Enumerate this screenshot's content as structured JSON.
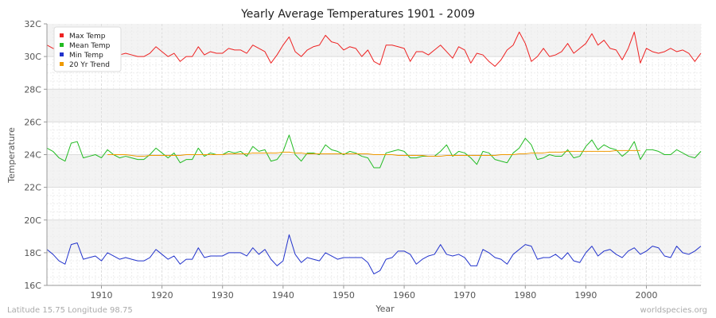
{
  "chart_data": {
    "type": "line",
    "title": "Yearly Average Temperatures 1901 - 2009",
    "xlabel": "Year",
    "ylabel": "Temperature",
    "xlim": [
      1901,
      2009
    ],
    "ylim": [
      16,
      32
    ],
    "x_ticks": [
      1910,
      1920,
      1930,
      1940,
      1950,
      1960,
      1970,
      1980,
      1990,
      2000
    ],
    "y_ticks": [
      16,
      18,
      20,
      22,
      24,
      26,
      28,
      30,
      32
    ],
    "y_tick_labels": [
      "16C",
      "18C",
      "20C",
      "22C",
      "24C",
      "26C",
      "28C",
      "30C",
      "32C"
    ],
    "grid": true,
    "legend_position": "top-left",
    "x": [
      1901,
      1902,
      1903,
      1904,
      1905,
      1906,
      1907,
      1908,
      1909,
      1910,
      1911,
      1912,
      1913,
      1914,
      1915,
      1916,
      1917,
      1918,
      1919,
      1920,
      1921,
      1922,
      1923,
      1924,
      1925,
      1926,
      1927,
      1928,
      1929,
      1930,
      1931,
      1932,
      1933,
      1934,
      1935,
      1936,
      1937,
      1938,
      1939,
      1940,
      1941,
      1942,
      1943,
      1944,
      1945,
      1946,
      1947,
      1948,
      1949,
      1950,
      1951,
      1952,
      1953,
      1954,
      1955,
      1956,
      1957,
      1958,
      1959,
      1960,
      1961,
      1962,
      1963,
      1964,
      1965,
      1966,
      1967,
      1968,
      1969,
      1970,
      1971,
      1972,
      1973,
      1974,
      1975,
      1976,
      1977,
      1978,
      1979,
      1980,
      1981,
      1982,
      1983,
      1984,
      1985,
      1986,
      1987,
      1988,
      1989,
      1990,
      1991,
      1992,
      1993,
      1994,
      1995,
      1996,
      1997,
      1998,
      1999,
      2000,
      2001,
      2002,
      2003,
      2004,
      2005,
      2006,
      2007,
      2008,
      2009
    ],
    "series": [
      {
        "name": "Max Temp",
        "color": "#ee2222",
        "values": [
          30.7,
          30.5,
          30.4,
          30.5,
          30.4,
          30.3,
          30.2,
          30.3,
          30.1,
          30.2,
          30.1,
          29.9,
          30.1,
          30.2,
          30.1,
          30.0,
          30.0,
          30.2,
          30.6,
          30.3,
          30.0,
          30.2,
          29.7,
          30.0,
          30.0,
          30.6,
          30.1,
          30.3,
          30.2,
          30.2,
          30.5,
          30.4,
          30.4,
          30.2,
          30.7,
          30.5,
          30.3,
          29.6,
          30.1,
          30.7,
          31.2,
          30.3,
          30.0,
          30.4,
          30.6,
          30.7,
          31.3,
          30.9,
          30.8,
          30.4,
          30.6,
          30.5,
          30.0,
          30.4,
          29.7,
          29.5,
          30.7,
          30.7,
          30.6,
          30.5,
          29.7,
          30.3,
          30.3,
          30.1,
          30.4,
          30.7,
          30.3,
          29.9,
          30.6,
          30.4,
          29.6,
          30.2,
          30.1,
          29.7,
          29.4,
          29.8,
          30.4,
          30.7,
          31.5,
          30.8,
          29.7,
          30.0,
          30.5,
          30.0,
          30.1,
          30.3,
          30.8,
          30.2,
          30.5,
          30.8,
          31.4,
          30.7,
          31.0,
          30.5,
          30.4,
          29.8,
          30.5,
          31.5,
          29.6,
          30.5,
          30.3,
          30.2,
          30.3,
          30.5,
          30.3,
          30.4,
          30.2,
          29.7,
          30.2
        ]
      },
      {
        "name": "Mean Temp",
        "color": "#22bb22",
        "values": [
          24.4,
          24.2,
          23.8,
          23.6,
          24.7,
          24.8,
          23.8,
          23.9,
          24.0,
          23.8,
          24.3,
          24.0,
          23.8,
          23.9,
          23.8,
          23.7,
          23.7,
          24.0,
          24.4,
          24.1,
          23.8,
          24.1,
          23.5,
          23.7,
          23.7,
          24.4,
          23.9,
          24.1,
          24.0,
          24.0,
          24.2,
          24.1,
          24.2,
          23.9,
          24.5,
          24.2,
          24.3,
          23.6,
          23.7,
          24.2,
          25.2,
          24.0,
          23.6,
          24.1,
          24.1,
          24.0,
          24.6,
          24.3,
          24.2,
          24.0,
          24.2,
          24.1,
          23.9,
          23.8,
          23.2,
          23.2,
          24.1,
          24.2,
          24.3,
          24.2,
          23.8,
          23.8,
          23.9,
          23.9,
          23.9,
          24.2,
          24.6,
          23.9,
          24.2,
          24.1,
          23.8,
          23.4,
          24.2,
          24.1,
          23.7,
          23.6,
          23.5,
          24.1,
          24.4,
          25.0,
          24.6,
          23.7,
          23.8,
          24.0,
          23.9,
          23.9,
          24.3,
          23.8,
          23.9,
          24.5,
          24.9,
          24.3,
          24.6,
          24.4,
          24.3,
          23.9,
          24.2,
          24.8,
          23.7,
          24.3,
          24.3,
          24.2,
          24.0,
          24.0,
          24.3,
          24.1,
          23.9,
          23.8,
          24.2
        ]
      },
      {
        "name": "Min Temp",
        "color": "#2233cc",
        "values": [
          18.2,
          17.9,
          17.5,
          17.3,
          18.5,
          18.6,
          17.6,
          17.7,
          17.8,
          17.5,
          18.0,
          17.8,
          17.6,
          17.7,
          17.6,
          17.5,
          17.5,
          17.7,
          18.2,
          17.9,
          17.6,
          17.8,
          17.3,
          17.6,
          17.6,
          18.3,
          17.7,
          17.8,
          17.8,
          17.8,
          18.0,
          18.0,
          18.0,
          17.8,
          18.3,
          17.9,
          18.2,
          17.6,
          17.2,
          17.5,
          19.1,
          17.9,
          17.4,
          17.7,
          17.6,
          17.5,
          18.0,
          17.8,
          17.6,
          17.7,
          17.7,
          17.7,
          17.7,
          17.4,
          16.7,
          16.9,
          17.6,
          17.7,
          18.1,
          18.1,
          17.9,
          17.3,
          17.6,
          17.8,
          17.9,
          18.5,
          17.9,
          17.8,
          17.9,
          17.7,
          17.2,
          17.2,
          18.2,
          18.0,
          17.7,
          17.6,
          17.3,
          17.9,
          18.2,
          18.5,
          18.4,
          17.6,
          17.7,
          17.7,
          17.9,
          17.6,
          18.0,
          17.5,
          17.4,
          18.0,
          18.4,
          17.8,
          18.1,
          18.2,
          17.9,
          17.7,
          18.1,
          18.3,
          17.9,
          18.1,
          18.4,
          18.3,
          17.8,
          17.7,
          18.4,
          18.0,
          17.9,
          18.1,
          18.4
        ]
      },
      {
        "name": "20 Yr Trend",
        "color": "#ee9900",
        "values": [
          null,
          null,
          null,
          null,
          null,
          null,
          null,
          null,
          null,
          null,
          24.0,
          24.0,
          24.0,
          24.0,
          23.95,
          23.9,
          23.9,
          23.95,
          23.95,
          23.95,
          23.95,
          23.95,
          23.95,
          24.0,
          24.0,
          24.0,
          24.0,
          24.0,
          24.0,
          24.0,
          24.05,
          24.05,
          24.05,
          24.05,
          24.1,
          24.1,
          24.1,
          24.1,
          24.1,
          24.15,
          24.15,
          24.1,
          24.1,
          24.05,
          24.05,
          24.05,
          24.05,
          24.05,
          24.05,
          24.05,
          24.05,
          24.05,
          24.05,
          24.05,
          24.0,
          24.0,
          24.0,
          24.0,
          23.95,
          23.95,
          23.95,
          23.95,
          23.95,
          23.9,
          23.9,
          23.9,
          23.95,
          23.95,
          23.95,
          23.95,
          23.95,
          23.95,
          23.95,
          23.95,
          23.95,
          24.0,
          24.0,
          24.0,
          24.05,
          24.05,
          24.1,
          24.1,
          24.1,
          24.15,
          24.15,
          24.15,
          24.2,
          24.2,
          24.2,
          24.2,
          24.2,
          24.2,
          24.2,
          24.2,
          24.25,
          24.25,
          24.25,
          24.25,
          24.25,
          null,
          null,
          null,
          null,
          null,
          null,
          null,
          null,
          null,
          null
        ]
      }
    ]
  },
  "footer": {
    "left": "Latitude 15.75 Longitude 98.75",
    "right": "worldspecies.org"
  }
}
